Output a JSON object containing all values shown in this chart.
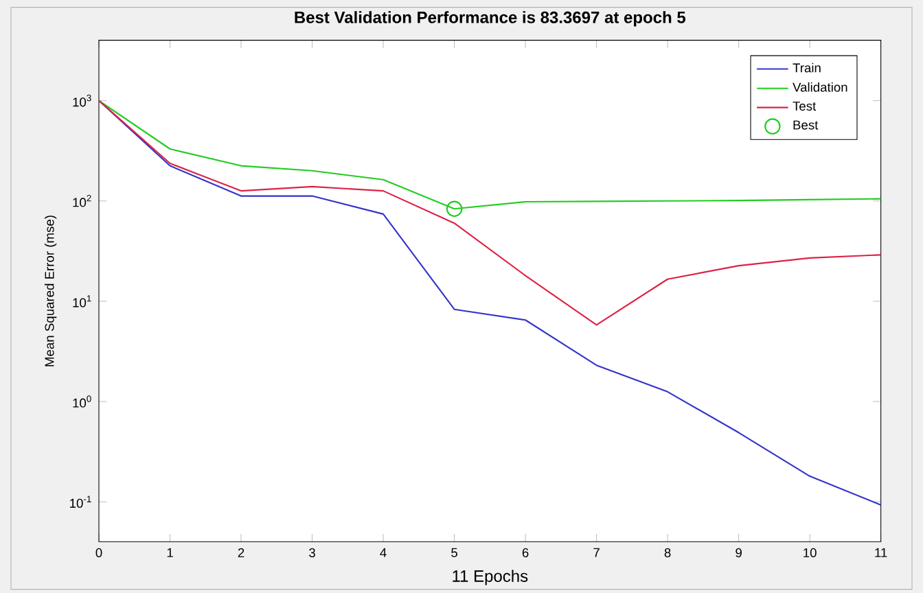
{
  "chart_data": {
    "type": "line",
    "title": "Best Validation Performance is 83.3697 at epoch 5",
    "xlabel": "11 Epochs",
    "ylabel": "Mean Squared Error  (mse)",
    "x": [
      0,
      1,
      2,
      3,
      4,
      5,
      6,
      7,
      8,
      9,
      10,
      11
    ],
    "series": [
      {
        "name": "Train",
        "color": "#3333cc",
        "values": [
          1000,
          224,
          112,
          112,
          74,
          8.3,
          6.5,
          2.3,
          1.25,
          0.49,
          0.18,
          0.093
        ]
      },
      {
        "name": "Validation",
        "color": "#22cc22",
        "values": [
          1000,
          330,
          224,
          200,
          163,
          83.37,
          98,
          99,
          100,
          101,
          103,
          105
        ]
      },
      {
        "name": "Test",
        "color": "#dd2244",
        "values": [
          1000,
          237,
          126,
          139,
          126,
          60,
          18,
          5.8,
          16.6,
          22.6,
          27,
          29
        ]
      },
      {
        "name": "Best",
        "type": "scatter",
        "marker": "circle",
        "color": "#22cc22",
        "x": [
          5
        ],
        "values": [
          83.37
        ]
      }
    ],
    "log": "y",
    "xlim": [
      0,
      11
    ],
    "xticks": [
      0,
      1,
      2,
      3,
      4,
      5,
      6,
      7,
      8,
      9,
      10,
      11
    ],
    "ylim": [
      0.04,
      4000
    ],
    "yticks": [
      {
        "value": 0.1,
        "label": "10$^{-1}$"
      },
      {
        "value": 1,
        "label": "10$^{0}$"
      },
      {
        "value": 10,
        "label": "10$^{1}$"
      },
      {
        "value": 100,
        "label": "10$^{2}$"
      },
      {
        "value": 1000,
        "label": "10$^{3}$"
      }
    ],
    "legend": "top right",
    "grid": false
  }
}
